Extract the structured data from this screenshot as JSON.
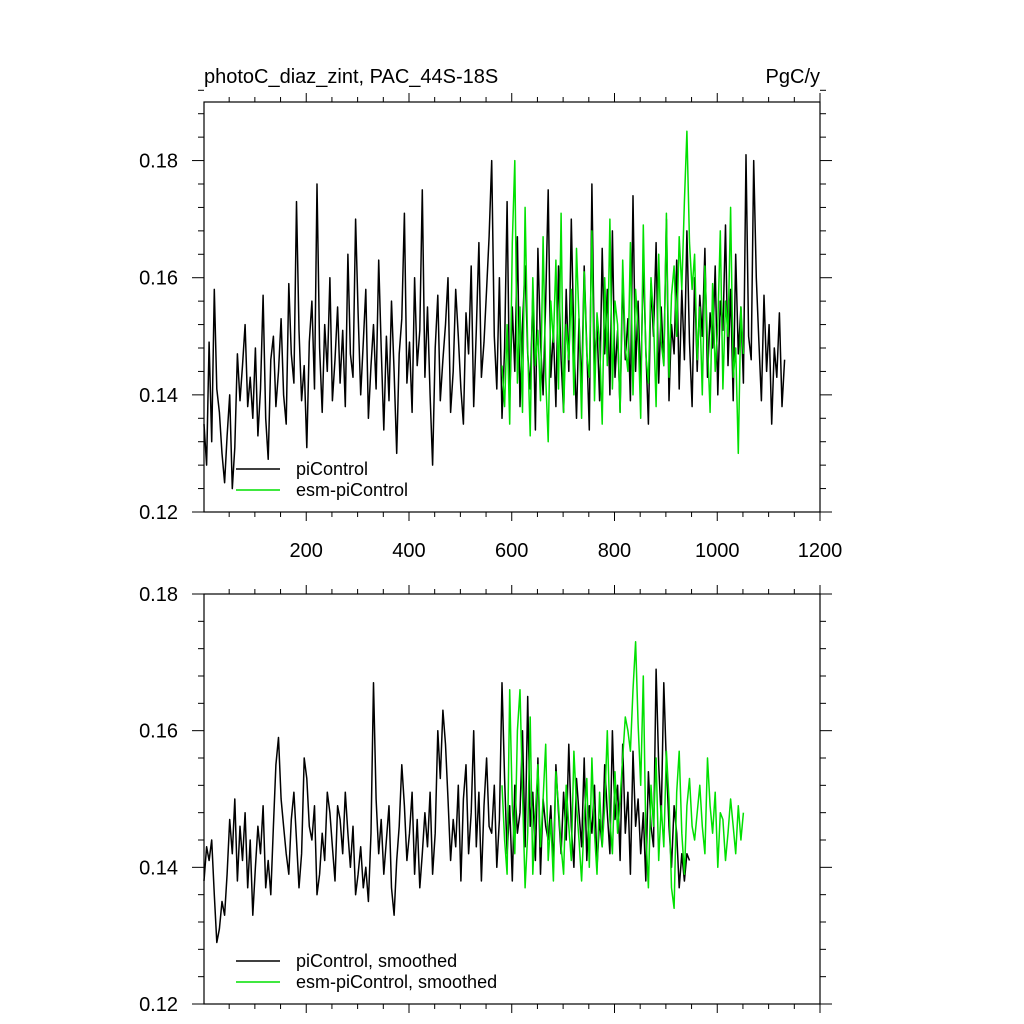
{
  "chart_data": [
    {
      "type": "line",
      "title": "photoC_diaz_zint, PAC_44S-18S",
      "units": "PgC/y",
      "xlabel": "",
      "ylabel": "",
      "xlim": [
        1,
        1200
      ],
      "ylim": [
        0.12,
        0.19
      ],
      "x_ticks": [
        200,
        400,
        600,
        800,
        1000,
        1200
      ],
      "y_ticks": [
        0.12,
        0.14,
        0.16,
        0.18
      ],
      "x_tick_labels": [
        "200",
        "400",
        "600",
        "800",
        "1000",
        "1200"
      ],
      "y_tick_labels": [
        "0.12",
        "0.14",
        "0.16",
        "0.18"
      ],
      "grid": false,
      "legend_position": "bottom-left",
      "series": [
        {
          "name": "piControl",
          "color": "#000000",
          "x_start": 1,
          "x_step": 5,
          "values": [
            0.135,
            0.128,
            0.149,
            0.132,
            0.158,
            0.141,
            0.137,
            0.13,
            0.125,
            0.133,
            0.14,
            0.124,
            0.131,
            0.147,
            0.139,
            0.145,
            0.152,
            0.138,
            0.143,
            0.136,
            0.148,
            0.133,
            0.141,
            0.157,
            0.136,
            0.129,
            0.146,
            0.15,
            0.138,
            0.144,
            0.153,
            0.14,
            0.135,
            0.159,
            0.147,
            0.142,
            0.173,
            0.151,
            0.139,
            0.145,
            0.131,
            0.149,
            0.156,
            0.141,
            0.176,
            0.148,
            0.137,
            0.152,
            0.144,
            0.16,
            0.139,
            0.146,
            0.155,
            0.142,
            0.151,
            0.138,
            0.164,
            0.147,
            0.143,
            0.17,
            0.154,
            0.14,
            0.149,
            0.158,
            0.136,
            0.145,
            0.152,
            0.141,
            0.163,
            0.148,
            0.134,
            0.15,
            0.139,
            0.156,
            0.144,
            0.13,
            0.147,
            0.153,
            0.171,
            0.142,
            0.149,
            0.137,
            0.16,
            0.145,
            0.151,
            0.175,
            0.143,
            0.155,
            0.14,
            0.128,
            0.148,
            0.157,
            0.139,
            0.146,
            0.152,
            0.16,
            0.137,
            0.144,
            0.158,
            0.15,
            0.141,
            0.135,
            0.154,
            0.147,
            0.162,
            0.138,
            0.151,
            0.166,
            0.143,
            0.149,
            0.158,
            0.167,
            0.18,
            0.15,
            0.141,
            0.16,
            0.136,
            0.148,
            0.173,
            0.139,
            0.155,
            0.144,
            0.167,
            0.138,
            0.152,
            0.162,
            0.147,
            0.141,
            0.157,
            0.134,
            0.165,
            0.149,
            0.14,
            0.156,
            0.175,
            0.143,
            0.151,
            0.138,
            0.162,
            0.146,
            0.137,
            0.158,
            0.144,
            0.17,
            0.149,
            0.136,
            0.153,
            0.141,
            0.162,
            0.148,
            0.134,
            0.176,
            0.145,
            0.152,
            0.139,
            0.165,
            0.147,
            0.158,
            0.14,
            0.168,
            0.143,
            0.151,
            0.137,
            0.16,
            0.146,
            0.153,
            0.139,
            0.174,
            0.144,
            0.156,
            0.141,
            0.163,
            0.148,
            0.135,
            0.159,
            0.15,
            0.166,
            0.142,
            0.155,
            0.145,
            0.17,
            0.139,
            0.152,
            0.147,
            0.163,
            0.141,
            0.158,
            0.146,
            0.168,
            0.149,
            0.138,
            0.16,
            0.144,
            0.157,
            0.15,
            0.165,
            0.143,
            0.154,
            0.148,
            0.162,
            0.14,
            0.156,
            0.151,
            0.169,
            0.145,
            0.158,
            0.139,
            0.164,
            0.147,
            0.155,
            0.142,
            0.181,
            0.15,
            0.146,
            0.18,
            0.16,
            0.149,
            0.139,
            0.157,
            0.144,
            0.152,
            0.135,
            0.148,
            0.143,
            0.154,
            0.138,
            0.146
          ]
        },
        {
          "name": "esm-piControl",
          "color": "#00e000",
          "x_start": 581,
          "x_step": 5,
          "values": [
            0.145,
            0.138,
            0.152,
            0.135,
            0.166,
            0.18,
            0.142,
            0.155,
            0.137,
            0.172,
            0.148,
            0.133,
            0.16,
            0.145,
            0.151,
            0.139,
            0.167,
            0.143,
            0.132,
            0.156,
            0.149,
            0.163,
            0.141,
            0.171,
            0.137,
            0.152,
            0.146,
            0.158,
            0.14,
            0.165,
            0.153,
            0.136,
            0.161,
            0.147,
            0.143,
            0.168,
            0.139,
            0.154,
            0.149,
            0.135,
            0.16,
            0.145,
            0.17,
            0.141,
            0.156,
            0.152,
            0.137,
            0.163,
            0.148,
            0.144,
            0.166,
            0.14,
            0.158,
            0.151,
            0.136,
            0.169,
            0.147,
            0.142,
            0.16,
            0.153,
            0.138,
            0.164,
            0.149,
            0.145,
            0.171,
            0.143,
            0.157,
            0.162,
            0.15,
            0.167,
            0.158,
            0.173,
            0.185,
            0.166,
            0.158,
            0.164,
            0.146,
            0.155,
            0.14,
            0.162,
            0.149,
            0.137,
            0.159,
            0.144,
            0.152,
            0.168,
            0.141,
            0.156,
            0.15,
            0.172,
            0.143,
            0.148,
            0.13,
            0.155,
            0.147
          ]
        }
      ]
    },
    {
      "type": "line",
      "title": "",
      "units": "",
      "xlim": [
        1,
        1200
      ],
      "ylim": [
        0.12,
        0.18
      ],
      "x_ticks": [
        200,
        400,
        600,
        800,
        1000,
        1200
      ],
      "y_ticks": [
        0.12,
        0.14,
        0.16,
        0.18
      ],
      "y_tick_labels": [
        "0.12",
        "0.14",
        "0.16",
        "0.18"
      ],
      "grid": false,
      "legend_position": "bottom-left",
      "series": [
        {
          "name": "piControl, smoothed",
          "color": "#000000",
          "x_start": 1,
          "x_step": 5,
          "values": [
            0.138,
            0.143,
            0.141,
            0.144,
            0.136,
            0.129,
            0.131,
            0.135,
            0.133,
            0.139,
            0.147,
            0.142,
            0.15,
            0.138,
            0.146,
            0.141,
            0.148,
            0.137,
            0.144,
            0.133,
            0.14,
            0.146,
            0.142,
            0.149,
            0.137,
            0.141,
            0.136,
            0.146,
            0.155,
            0.159,
            0.15,
            0.146,
            0.142,
            0.139,
            0.147,
            0.151,
            0.144,
            0.137,
            0.142,
            0.156,
            0.153,
            0.146,
            0.144,
            0.149,
            0.136,
            0.139,
            0.145,
            0.141,
            0.151,
            0.148,
            0.143,
            0.138,
            0.149,
            0.147,
            0.142,
            0.151,
            0.145,
            0.14,
            0.146,
            0.136,
            0.139,
            0.143,
            0.137,
            0.14,
            0.135,
            0.145,
            0.167,
            0.15,
            0.142,
            0.147,
            0.139,
            0.144,
            0.149,
            0.137,
            0.133,
            0.141,
            0.146,
            0.155,
            0.149,
            0.141,
            0.145,
            0.151,
            0.139,
            0.147,
            0.137,
            0.142,
            0.148,
            0.143,
            0.151,
            0.139,
            0.145,
            0.16,
            0.153,
            0.163,
            0.158,
            0.15,
            0.141,
            0.147,
            0.143,
            0.152,
            0.138,
            0.15,
            0.155,
            0.142,
            0.148,
            0.16,
            0.143,
            0.151,
            0.138,
            0.149,
            0.156,
            0.146,
            0.145,
            0.152,
            0.14,
            0.147,
            0.167,
            0.153,
            0.142,
            0.149,
            0.138,
            0.152,
            0.145,
            0.148,
            0.16,
            0.143,
            0.165,
            0.146,
            0.151,
            0.141,
            0.156,
            0.139,
            0.15,
            0.146,
            0.144,
            0.149,
            0.14,
            0.155,
            0.148,
            0.142,
            0.151,
            0.144,
            0.158,
            0.146,
            0.14,
            0.153,
            0.148,
            0.143,
            0.156,
            0.141,
            0.149,
            0.145,
            0.152,
            0.14,
            0.147,
            0.143,
            0.155,
            0.148,
            0.142,
            0.16,
            0.147,
            0.152,
            0.141,
            0.158,
            0.145,
            0.151,
            0.139,
            0.157,
            0.146,
            0.15,
            0.142,
            0.148,
            0.138,
            0.154,
            0.146,
            0.143,
            0.169,
            0.155,
            0.147,
            0.167,
            0.155,
            0.146,
            0.14,
            0.149,
            0.145,
            0.137,
            0.142,
            0.138,
            0.142,
            0.141
          ]
        },
        {
          "name": "esm-piControl, smoothed",
          "color": "#00e000",
          "x_start": 581,
          "x_step": 5,
          "values": [
            0.152,
            0.144,
            0.139,
            0.166,
            0.149,
            0.142,
            0.16,
            0.166,
            0.151,
            0.137,
            0.145,
            0.162,
            0.139,
            0.148,
            0.155,
            0.143,
            0.15,
            0.158,
            0.141,
            0.147,
            0.138,
            0.154,
            0.149,
            0.143,
            0.139,
            0.152,
            0.146,
            0.141,
            0.157,
            0.149,
            0.144,
            0.138,
            0.147,
            0.153,
            0.14,
            0.156,
            0.145,
            0.139,
            0.151,
            0.143,
            0.149,
            0.16,
            0.147,
            0.142,
            0.154,
            0.145,
            0.15,
            0.156,
            0.162,
            0.16,
            0.157,
            0.166,
            0.173,
            0.161,
            0.152,
            0.168,
            0.145,
            0.137,
            0.152,
            0.146,
            0.156,
            0.141,
            0.149,
            0.143,
            0.157,
            0.15,
            0.137,
            0.134,
            0.151,
            0.157,
            0.145,
            0.139,
            0.149,
            0.153,
            0.146,
            0.144,
            0.148,
            0.152,
            0.146,
            0.142,
            0.156,
            0.149,
            0.145,
            0.151,
            0.14,
            0.148,
            0.147,
            0.141,
            0.145,
            0.15,
            0.146,
            0.142,
            0.149,
            0.144,
            0.148
          ]
        }
      ]
    }
  ]
}
